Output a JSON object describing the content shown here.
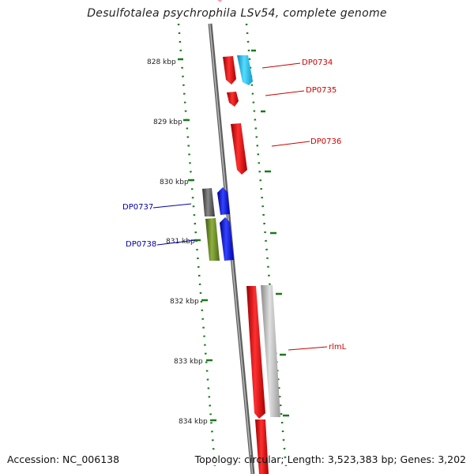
{
  "title": "Desulfotalea psychrophila LSv54, complete genome",
  "footer": {
    "accession": "Accession: NC_006138",
    "summary": "Topology: circular; Length: 3,523,383 bp; Genes: 3,202"
  },
  "colors": {
    "backbone": "#8a8a8a",
    "tick": "#1a7a1a",
    "label_forward": "#cc0000",
    "label_reverse": "#0000aa",
    "gene_red": "#ee0000",
    "gene_cyan": "#22bbee",
    "gene_gray": "#bbbbbb",
    "gene_darkgray": "#555555",
    "gene_blue": "#0000ee",
    "gene_olive": "#6b8e23"
  },
  "ticks": [
    {
      "label": "828 kbp"
    },
    {
      "label": "829 kbp"
    },
    {
      "label": "830 kbp"
    },
    {
      "label": "831 kbp"
    },
    {
      "label": "832 kbp"
    },
    {
      "label": "833 kbp"
    },
    {
      "label": "834 kbp"
    }
  ],
  "gene_labels": [
    {
      "text": "DP0734",
      "strand": "forward"
    },
    {
      "text": "DP0735",
      "strand": "forward"
    },
    {
      "text": "DP0736",
      "strand": "forward"
    },
    {
      "text": "DP0737",
      "strand": "reverse"
    },
    {
      "text": "DP0738",
      "strand": "reverse"
    },
    {
      "text": "rlmL",
      "strand": "forward"
    }
  ]
}
